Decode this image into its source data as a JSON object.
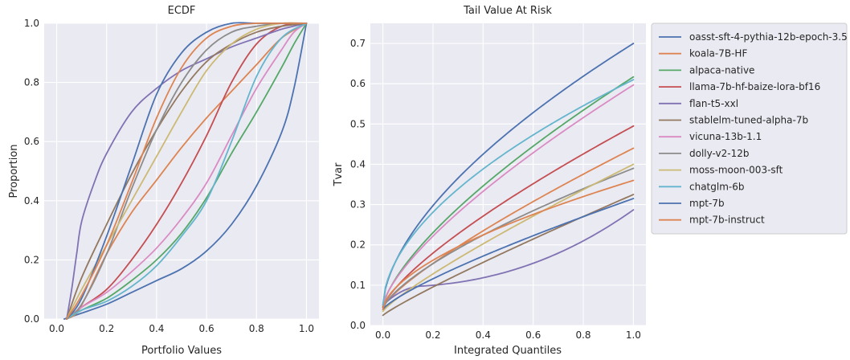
{
  "chart_data": [
    {
      "type": "line",
      "title": "ECDF",
      "xlabel": "Portfolio Values",
      "ylabel": "Proportion",
      "xlim": [
        -0.05,
        1.05
      ],
      "ylim": [
        0,
        1.0
      ],
      "xticks": [
        0.0,
        0.2,
        0.4,
        0.6,
        0.8,
        1.0
      ],
      "yticks": [
        0.0,
        0.2,
        0.4,
        0.6,
        0.8,
        1.0
      ],
      "xtick_labels": [
        "0.0",
        "0.2",
        "0.4",
        "0.6",
        "0.8",
        "1.0"
      ],
      "ytick_labels": [
        "0.0",
        "0.2",
        "0.4",
        "0.6",
        "0.8",
        "1.0"
      ],
      "grid": true,
      "series": [
        {
          "name": "oasst-sft-4-pythia-12b-epoch-3.5",
          "color": "#4c72b0",
          "x": [
            0.03,
            0.1,
            0.2,
            0.3,
            0.4,
            0.5,
            0.6,
            0.7,
            0.8,
            0.9,
            0.95,
            1.0
          ],
          "y": [
            0,
            0.02,
            0.05,
            0.09,
            0.13,
            0.17,
            0.23,
            0.32,
            0.45,
            0.63,
            0.78,
            1.0
          ]
        },
        {
          "name": "koala-7B-HF",
          "color": "#dd8452",
          "x": [
            0.04,
            0.08,
            0.12,
            0.2,
            0.3,
            0.4,
            0.5,
            0.6,
            0.7,
            0.8,
            0.9,
            1.0
          ],
          "y": [
            0,
            0.02,
            0.08,
            0.22,
            0.36,
            0.47,
            0.58,
            0.68,
            0.77,
            0.86,
            0.95,
            1.0
          ]
        },
        {
          "name": "alpaca-native",
          "color": "#55a868",
          "x": [
            0.04,
            0.1,
            0.2,
            0.3,
            0.4,
            0.5,
            0.6,
            0.7,
            0.8,
            0.9,
            0.95,
            1.0
          ],
          "y": [
            0,
            0.03,
            0.07,
            0.13,
            0.2,
            0.29,
            0.41,
            0.56,
            0.7,
            0.85,
            0.93,
            1.0
          ]
        },
        {
          "name": "llama-7b-hf-baize-lora-bf16",
          "color": "#c44e52",
          "x": [
            0.04,
            0.1,
            0.2,
            0.3,
            0.4,
            0.5,
            0.6,
            0.7,
            0.8,
            0.9,
            1.0
          ],
          "y": [
            0,
            0.04,
            0.1,
            0.2,
            0.32,
            0.46,
            0.62,
            0.8,
            0.93,
            0.99,
            1.0
          ]
        },
        {
          "name": "flan-t5-xxl",
          "color": "#8172b3",
          "x": [
            0.04,
            0.06,
            0.08,
            0.1,
            0.15,
            0.2,
            0.3,
            0.4,
            0.5,
            0.6,
            0.7,
            0.8,
            0.9,
            1.0
          ],
          "y": [
            0,
            0.1,
            0.22,
            0.33,
            0.46,
            0.56,
            0.7,
            0.78,
            0.84,
            0.88,
            0.92,
            0.95,
            0.98,
            1.0
          ]
        },
        {
          "name": "stablelm-tuned-alpha-7b",
          "color": "#937860",
          "x": [
            0.04,
            0.1,
            0.2,
            0.3,
            0.4,
            0.5,
            0.6,
            0.7,
            0.8,
            0.9,
            1.0
          ],
          "y": [
            0,
            0.14,
            0.32,
            0.49,
            0.64,
            0.77,
            0.87,
            0.93,
            0.97,
            0.99,
            1.0
          ]
        },
        {
          "name": "vicuna-13b-1.1",
          "color": "#da8bc3",
          "x": [
            0.04,
            0.1,
            0.2,
            0.3,
            0.4,
            0.5,
            0.6,
            0.7,
            0.8,
            0.9,
            0.95,
            1.0
          ],
          "y": [
            0,
            0.04,
            0.09,
            0.16,
            0.24,
            0.34,
            0.46,
            0.62,
            0.78,
            0.91,
            0.97,
            1.0
          ]
        },
        {
          "name": "dolly-v2-12b",
          "color": "#8c8c8c",
          "x": [
            0.04,
            0.1,
            0.2,
            0.3,
            0.4,
            0.5,
            0.6,
            0.7,
            0.8,
            0.9,
            1.0
          ],
          "y": [
            0,
            0.05,
            0.22,
            0.44,
            0.64,
            0.8,
            0.91,
            0.97,
            0.99,
            1.0,
            1.0
          ]
        },
        {
          "name": "moss-moon-003-sft",
          "color": "#ccb974",
          "x": [
            0.04,
            0.1,
            0.2,
            0.3,
            0.4,
            0.5,
            0.6,
            0.7,
            0.8,
            0.9,
            1.0
          ],
          "y": [
            0,
            0.1,
            0.25,
            0.4,
            0.55,
            0.7,
            0.84,
            0.93,
            0.98,
            1.0,
            1.0
          ]
        },
        {
          "name": "chatglm-6b",
          "color": "#64b5cd",
          "x": [
            0.04,
            0.1,
            0.2,
            0.3,
            0.4,
            0.5,
            0.6,
            0.7,
            0.8,
            0.9,
            1.0
          ],
          "y": [
            0,
            0.03,
            0.06,
            0.11,
            0.18,
            0.28,
            0.4,
            0.6,
            0.82,
            0.95,
            1.0
          ]
        },
        {
          "name": "mpt-7b",
          "color": "#4c72b0",
          "x": [
            0.04,
            0.1,
            0.2,
            0.3,
            0.4,
            0.5,
            0.6,
            0.7,
            0.8,
            0.9,
            1.0
          ],
          "y": [
            0,
            0.07,
            0.28,
            0.52,
            0.76,
            0.9,
            0.97,
            1.0,
            1.0,
            1.0,
            1.0
          ]
        },
        {
          "name": "mpt-7b-instruct",
          "color": "#dd8452",
          "x": [
            0.04,
            0.1,
            0.2,
            0.3,
            0.4,
            0.5,
            0.6,
            0.7,
            0.8,
            0.9,
            1.0
          ],
          "y": [
            0,
            0.08,
            0.25,
            0.46,
            0.68,
            0.85,
            0.95,
            0.99,
            1.0,
            1.0,
            1.0
          ]
        }
      ]
    },
    {
      "type": "line",
      "title": "Tail Value At Risk",
      "xlabel": "Integrated Quantiles",
      "ylabel": "Tvar",
      "xlim": [
        -0.05,
        1.05
      ],
      "ylim": [
        0.0,
        0.75
      ],
      "xticks": [
        0.0,
        0.2,
        0.4,
        0.6,
        0.8,
        1.0
      ],
      "yticks": [
        0.0,
        0.1,
        0.2,
        0.3,
        0.4,
        0.5,
        0.6,
        0.7
      ],
      "xtick_labels": [
        "0.0",
        "0.2",
        "0.4",
        "0.6",
        "0.8",
        "1.0"
      ],
      "ytick_labels": [
        "0.0",
        "0.1",
        "0.2",
        "0.3",
        "0.4",
        "0.5",
        "0.6",
        "0.7"
      ],
      "grid": true,
      "series": [
        {
          "name": "oasst-sft-4-pythia-12b-epoch-3.5",
          "color": "#4c72b0",
          "start": 0.05,
          "end": 0.7,
          "p": 0.6
        },
        {
          "name": "koala-7B-HF",
          "color": "#dd8452",
          "start": 0.045,
          "end": 0.44,
          "p": 0.8
        },
        {
          "name": "alpaca-native",
          "color": "#55a868",
          "start": 0.045,
          "end": 0.617,
          "p": 0.7
        },
        {
          "name": "llama-7b-hf-baize-lora-bf16",
          "color": "#c44e52",
          "start": 0.045,
          "end": 0.495,
          "p": 0.75
        },
        {
          "name": "flan-t5-xxl",
          "color": "#8172b3",
          "start": 0.05,
          "end": 0.287,
          "shape": "flan"
        },
        {
          "name": "stablelm-tuned-alpha-7b",
          "color": "#937860",
          "start": 0.025,
          "end": 0.325,
          "p": 0.9
        },
        {
          "name": "vicuna-13b-1.1",
          "color": "#da8bc3",
          "start": 0.05,
          "end": 0.597,
          "p": 0.72
        },
        {
          "name": "dolly-v2-12b",
          "color": "#8c8c8c",
          "start": 0.04,
          "end": 0.39,
          "p": 0.7
        },
        {
          "name": "moss-moon-003-sft",
          "color": "#ccb974",
          "start": 0.035,
          "end": 0.4,
          "p": 0.85
        },
        {
          "name": "chatglm-6b",
          "color": "#64b5cd",
          "start": 0.05,
          "end": 0.61,
          "p": 0.55
        },
        {
          "name": "mpt-7b",
          "color": "#4c72b0",
          "start": 0.04,
          "end": 0.315,
          "p": 0.8
        },
        {
          "name": "mpt-7b-instruct",
          "color": "#dd8452",
          "start": 0.04,
          "end": 0.36,
          "p": 0.6
        }
      ],
      "legend": "right"
    }
  ]
}
